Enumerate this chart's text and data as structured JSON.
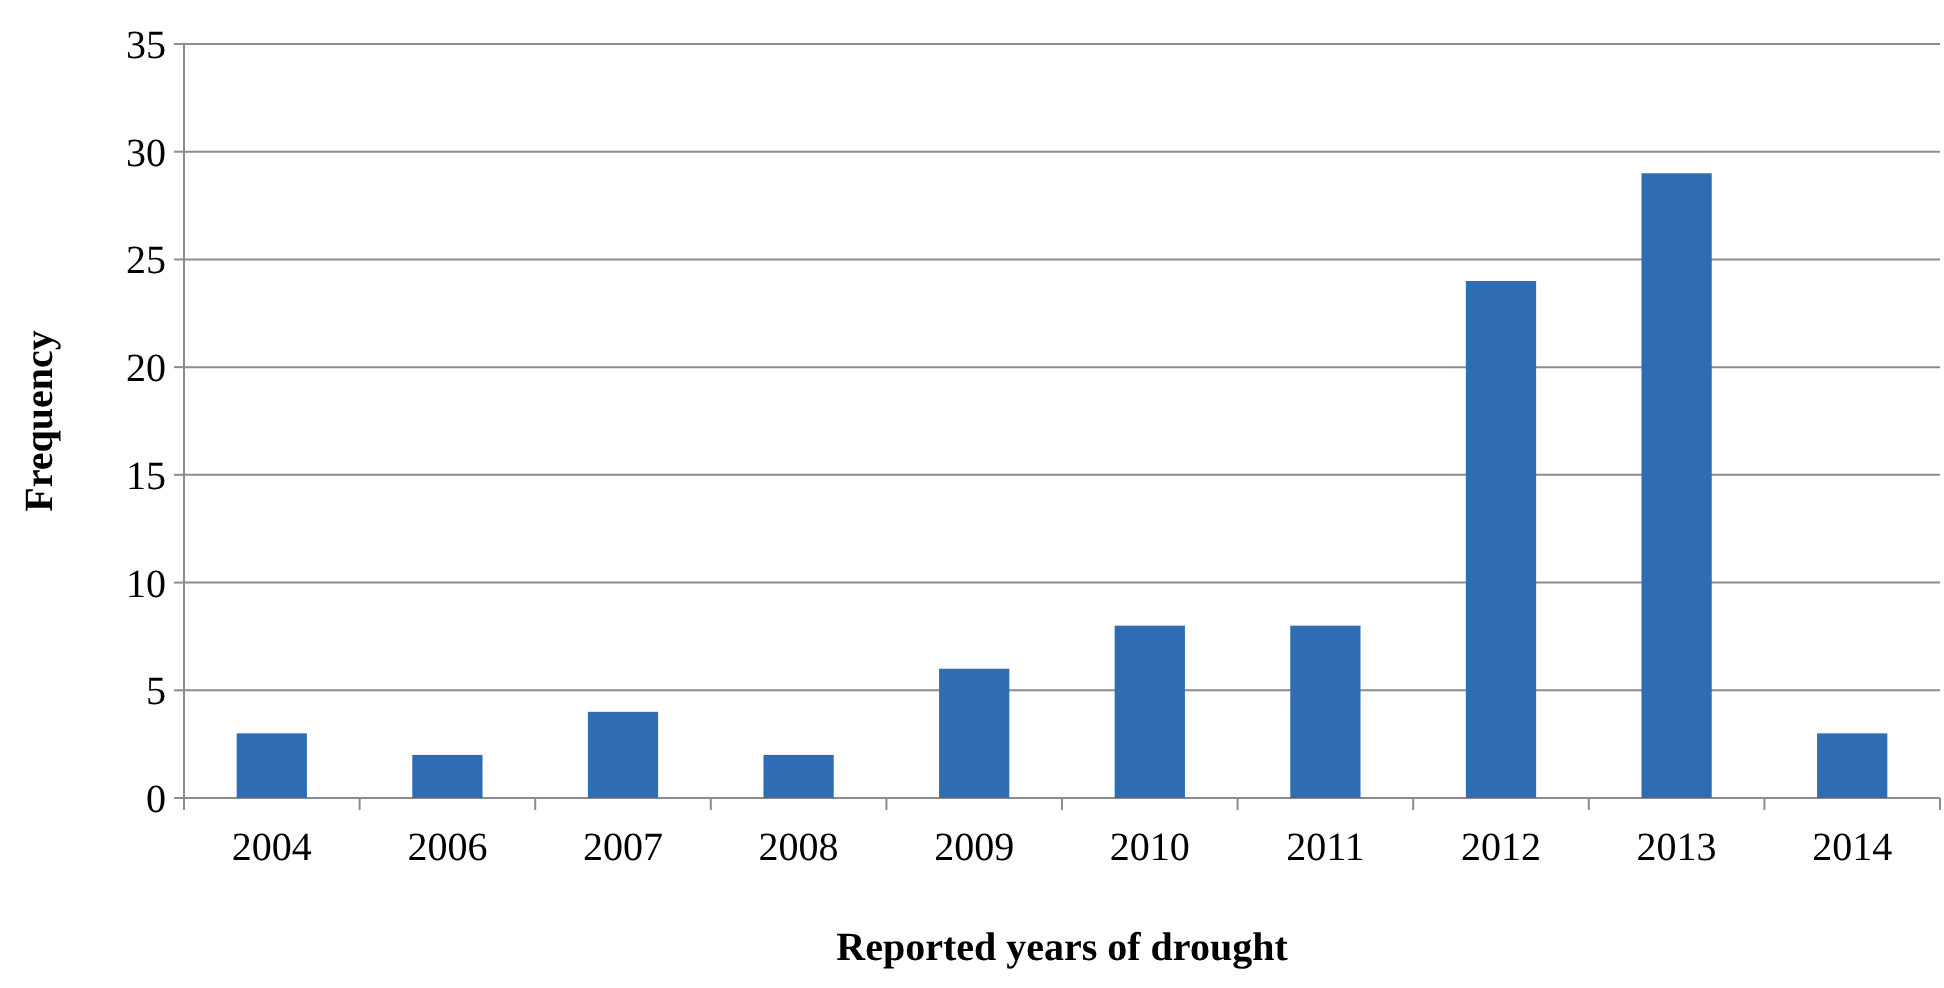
{
  "chart_data": {
    "type": "bar",
    "xlabel": "Reported years of drought",
    "ylabel": "Frequency",
    "categories": [
      "2004",
      "2006",
      "2007",
      "2008",
      "2009",
      "2010",
      "2011",
      "2012",
      "2013",
      "2014"
    ],
    "values": [
      3,
      2,
      4,
      2,
      6,
      8,
      8,
      24,
      29,
      3
    ],
    "color": "#2e6db4",
    "ylim": [
      0,
      35
    ],
    "yticks": [
      0,
      5,
      10,
      15,
      20,
      25,
      30,
      35
    ],
    "grid": "y"
  }
}
